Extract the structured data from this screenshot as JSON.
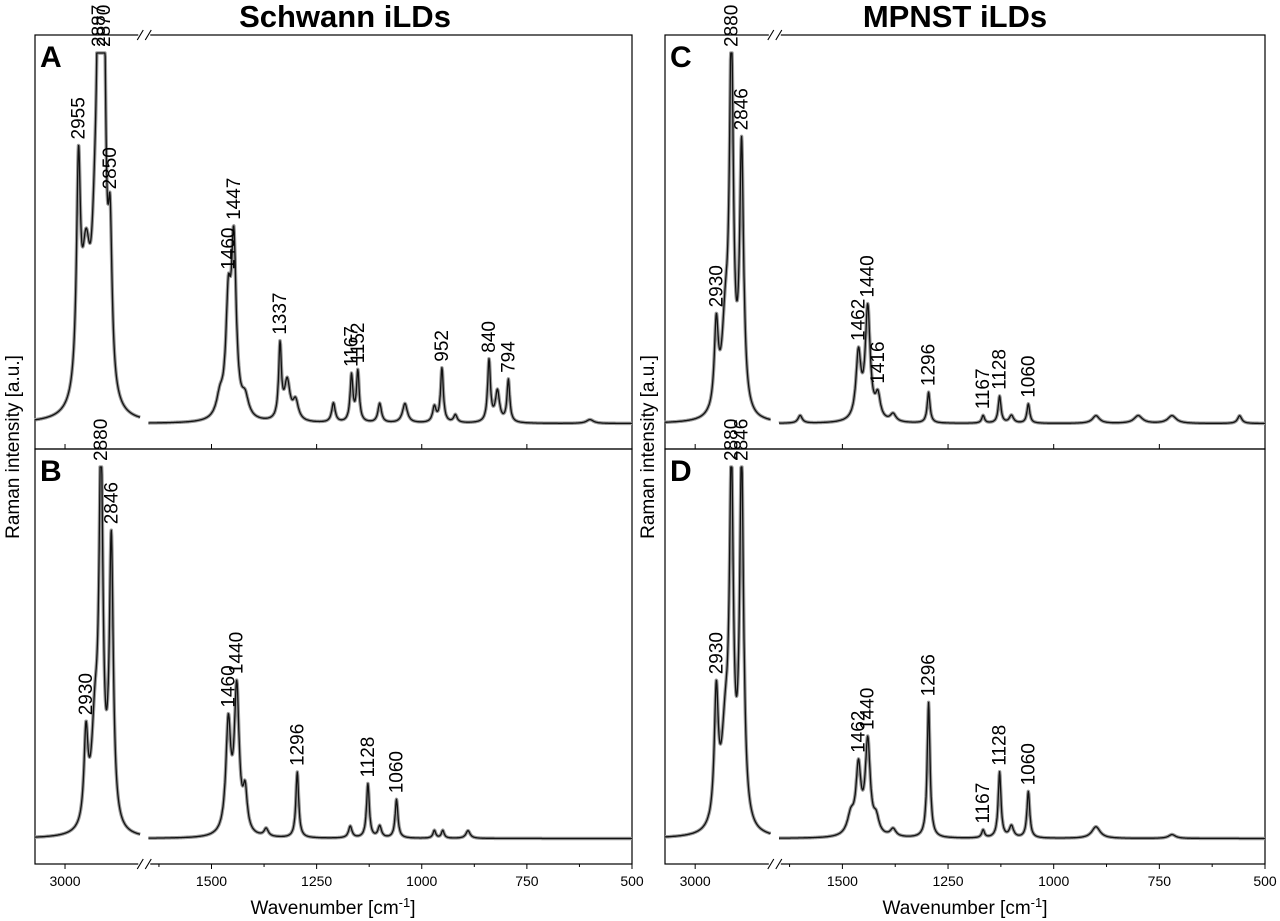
{
  "column_titles": [
    "Schwann iLDs",
    "MPNST iLDs"
  ],
  "ylabel": "Raman intensity [a.u.]",
  "xlabel": "Wavenumber [cm",
  "xlabel_sup": "-1",
  "xlabel_end": "]",
  "chart_data": [
    {
      "type": "line",
      "panel": "A",
      "column": "Schwann iLDs",
      "x_high_range": [
        3100,
        2750
      ],
      "x_low_range": [
        1650,
        500
      ],
      "x_ticks": [
        3000,
        1500,
        1250,
        1000,
        750,
        500
      ],
      "axis_break": true,
      "ylim": [
        0,
        1
      ],
      "baseline": 0.04,
      "peaks": [
        {
          "x": 2955,
          "y": 0.6,
          "label": "2955"
        },
        {
          "x": 2887,
          "y": 0.98,
          "label": "2887"
        },
        {
          "x": 2870,
          "y": 0.89,
          "label": "2870"
        },
        {
          "x": 2850,
          "y": 0.43,
          "label": "2850"
        },
        {
          "x": 1460,
          "y": 0.31,
          "label": "1460"
        },
        {
          "x": 1447,
          "y": 0.48,
          "label": "1447"
        },
        {
          "x": 1337,
          "y": 0.23,
          "label": "1337"
        },
        {
          "x": 1167,
          "y": 0.16,
          "label": "1167"
        },
        {
          "x": 1152,
          "y": 0.17,
          "label": "1152"
        },
        {
          "x": 952,
          "y": 0.18,
          "label": "952"
        },
        {
          "x": 840,
          "y": 0.2,
          "label": "840"
        },
        {
          "x": 794,
          "y": 0.15,
          "label": "794"
        }
      ]
    },
    {
      "type": "line",
      "panel": "B",
      "column": "Schwann iLDs",
      "x_high_range": [
        3100,
        2750
      ],
      "x_low_range": [
        1650,
        500
      ],
      "x_ticks": [
        3000,
        1500,
        1250,
        1000,
        750,
        500
      ],
      "axis_break": true,
      "ylim": [
        0,
        1
      ],
      "baseline": 0.04,
      "peaks": [
        {
          "x": 2930,
          "y": 0.27,
          "label": "2930"
        },
        {
          "x": 2880,
          "y": 0.98,
          "label": "2880"
        },
        {
          "x": 2846,
          "y": 0.77,
          "label": "2846"
        },
        {
          "x": 1460,
          "y": 0.32,
          "label": "1460"
        },
        {
          "x": 1440,
          "y": 0.41,
          "label": "1440"
        },
        {
          "x": 1296,
          "y": 0.21,
          "label": "1296"
        },
        {
          "x": 1128,
          "y": 0.18,
          "label": "1128"
        },
        {
          "x": 1060,
          "y": 0.14,
          "label": "1060"
        }
      ]
    },
    {
      "type": "line",
      "panel": "C",
      "column": "MPNST iLDs",
      "x_high_range": [
        3100,
        2750
      ],
      "x_low_range": [
        1650,
        500
      ],
      "x_ticks": [
        3000,
        1500,
        1250,
        1000,
        750,
        500
      ],
      "axis_break": true,
      "ylim": [
        0,
        1
      ],
      "baseline": 0.04,
      "peaks": [
        {
          "x": 2930,
          "y": 0.26,
          "label": "2930"
        },
        {
          "x": 2880,
          "y": 0.98,
          "label": "2880"
        },
        {
          "x": 2846,
          "y": 0.72,
          "label": "2846"
        },
        {
          "x": 1462,
          "y": 0.21,
          "label": "1462"
        },
        {
          "x": 1440,
          "y": 0.33,
          "label": "1440"
        },
        {
          "x": 1416,
          "y": 0.1,
          "label": "1416"
        },
        {
          "x": 1296,
          "y": 0.12,
          "label": "1296"
        },
        {
          "x": 1167,
          "y": 0.06,
          "label": "1167"
        },
        {
          "x": 1128,
          "y": 0.11,
          "label": "1128"
        },
        {
          "x": 1060,
          "y": 0.09,
          "label": "1060"
        }
      ]
    },
    {
      "type": "line",
      "panel": "D",
      "column": "MPNST iLDs",
      "x_high_range": [
        3100,
        2750
      ],
      "x_low_range": [
        1650,
        500
      ],
      "x_ticks": [
        3000,
        1500,
        1250,
        1000,
        750,
        500
      ],
      "axis_break": true,
      "ylim": [
        0,
        1
      ],
      "baseline": 0.04,
      "peaks": [
        {
          "x": 2930,
          "y": 0.37,
          "label": "2930"
        },
        {
          "x": 2880,
          "y": 0.91,
          "label": "2880"
        },
        {
          "x": 2846,
          "y": 0.98,
          "label": "2846"
        },
        {
          "x": 1462,
          "y": 0.21,
          "label": "1462"
        },
        {
          "x": 1440,
          "y": 0.28,
          "label": "1440"
        },
        {
          "x": 1296,
          "y": 0.39,
          "label": "1296"
        },
        {
          "x": 1167,
          "y": 0.06,
          "label": "1167"
        },
        {
          "x": 1128,
          "y": 0.21,
          "label": "1128"
        },
        {
          "x": 1060,
          "y": 0.16,
          "label": "1060"
        }
      ]
    }
  ]
}
